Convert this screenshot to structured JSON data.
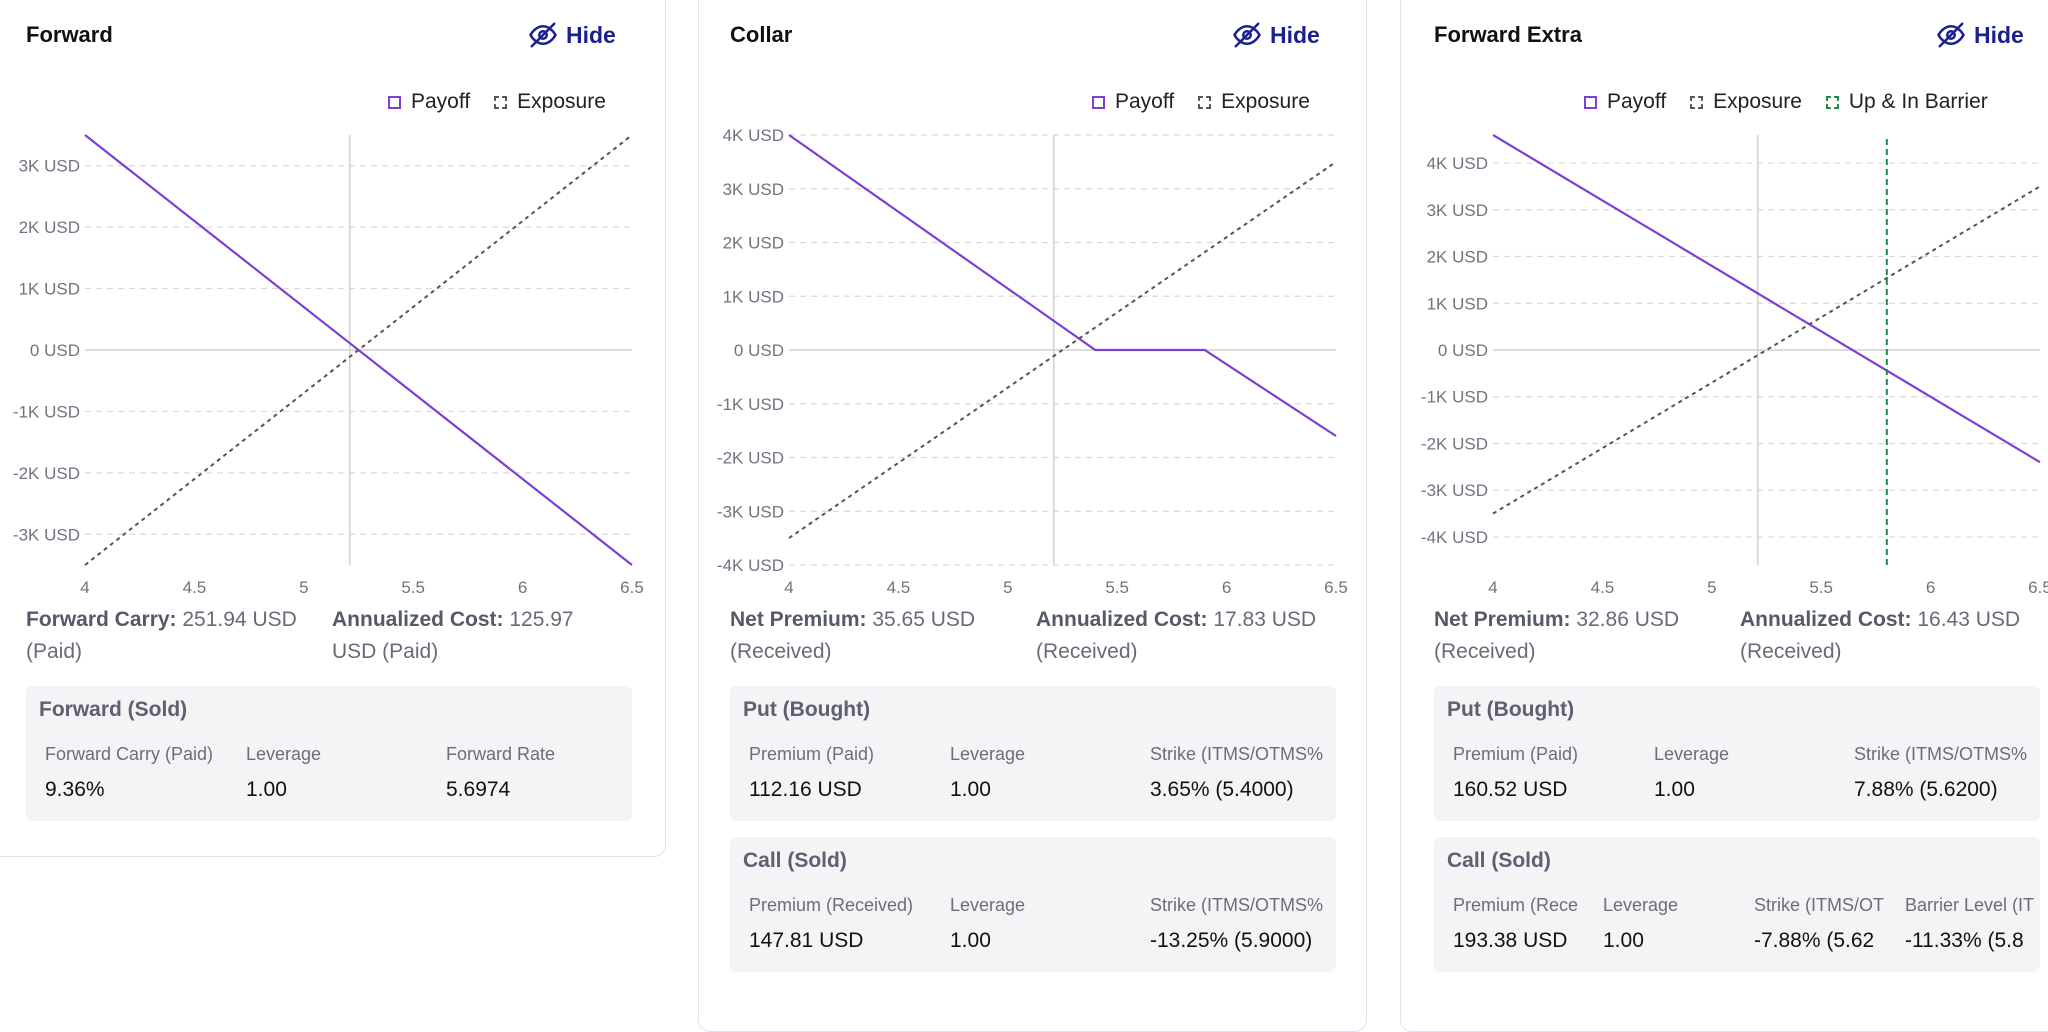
{
  "panels": [
    {
      "title": "Forward",
      "hide_label": "Hide",
      "legend": [
        {
          "label": "Payoff",
          "style": "solid",
          "color": "#7b3fd4"
        },
        {
          "label": "Exposure",
          "style": "dashed",
          "color": "#555555"
        }
      ],
      "stats": [
        {
          "label": "Forward Carry:",
          "value": " 251.94 USD (Paid)"
        },
        {
          "label": "Annualized Cost:",
          "value": " 125.97 USD (Paid)"
        }
      ],
      "boxes": [
        {
          "title": "Forward (Sold)",
          "columns": [
            {
              "label": "Forward Carry (Paid)",
              "value": "9.36%"
            },
            {
              "label": "Leverage",
              "value": "1.00"
            },
            {
              "label": "Forward Rate",
              "value": "5.6974"
            }
          ]
        }
      ]
    },
    {
      "title": "Collar",
      "hide_label": "Hide",
      "legend": [
        {
          "label": "Payoff",
          "style": "solid",
          "color": "#7b3fd4"
        },
        {
          "label": "Exposure",
          "style": "dashed",
          "color": "#555555"
        }
      ],
      "stats": [
        {
          "label": "Net Premium:",
          "value": " 35.65 USD (Received)"
        },
        {
          "label": "Annualized Cost:",
          "value": " 17.83 USD (Received)"
        }
      ],
      "boxes": [
        {
          "title": "Put (Bought)",
          "columns": [
            {
              "label": "Premium (Paid)",
              "value": "112.16 USD"
            },
            {
              "label": "Leverage",
              "value": "1.00"
            },
            {
              "label": "Strike (ITMS/OTMS%",
              "value": "3.65% (5.4000)"
            }
          ]
        },
        {
          "title": "Call (Sold)",
          "columns": [
            {
              "label": "Premium (Received)",
              "value": "147.81 USD"
            },
            {
              "label": "Leverage",
              "value": "1.00"
            },
            {
              "label": "Strike (ITMS/OTMS%",
              "value": "-13.25% (5.9000)"
            }
          ]
        }
      ]
    },
    {
      "title": "Forward Extra",
      "hide_label": "Hide",
      "legend": [
        {
          "label": "Payoff",
          "style": "solid",
          "color": "#7b3fd4"
        },
        {
          "label": "Exposure",
          "style": "dashed",
          "color": "#555555"
        },
        {
          "label": "Up & In Barrier",
          "style": "dashed",
          "color": "#1a8a4a"
        }
      ],
      "stats": [
        {
          "label": "Net Premium:",
          "value": " 32.86 USD (Received)"
        },
        {
          "label": "Annualized Cost:",
          "value": " 16.43 USD (Received)"
        }
      ],
      "boxes": [
        {
          "title": "Put (Bought)",
          "columns": [
            {
              "label": "Premium (Paid)",
              "value": "160.52 USD"
            },
            {
              "label": "Leverage",
              "value": "1.00"
            },
            {
              "label": "Strike (ITMS/OTMS%",
              "value": "7.88% (5.6200)"
            }
          ]
        },
        {
          "title": "Call (Sold)",
          "columns": [
            {
              "label": "Premium (Rece",
              "value": "193.38 USD"
            },
            {
              "label": "Leverage",
              "value": "1.00"
            },
            {
              "label": "Strike (ITMS/OT",
              "value": "-7.88% (5.62"
            },
            {
              "label": "Barrier Level (IT",
              "value": "-11.33% (5.8"
            }
          ]
        }
      ]
    }
  ],
  "chart_data": [
    {
      "type": "line",
      "x_ticks": [
        "4",
        "4.5",
        "5",
        "5.5",
        "6",
        "6.5"
      ],
      "y_ticks": [
        "3K USD",
        "2K USD",
        "1K USD",
        "0 USD",
        "-1K USD",
        "-2K USD",
        "-3K USD"
      ],
      "xlim": [
        4,
        6.5
      ],
      "ylim": [
        -3.5,
        3.5
      ],
      "ref_x": 5.21,
      "series": [
        {
          "name": "Payoff",
          "color": "#7b3fd4",
          "dash": false,
          "x": [
            4,
            6.5
          ],
          "y": [
            3.5,
            -3.5
          ]
        },
        {
          "name": "Exposure",
          "color": "#555555",
          "dash": true,
          "x": [
            4,
            6.5
          ],
          "y": [
            -3.5,
            3.5
          ]
        }
      ]
    },
    {
      "type": "line",
      "x_ticks": [
        "4",
        "4.5",
        "5",
        "5.5",
        "6",
        "6.5"
      ],
      "y_ticks": [
        "4K USD",
        "3K USD",
        "2K USD",
        "1K USD",
        "0 USD",
        "-1K USD",
        "-2K USD",
        "-3K USD",
        "-4K USD"
      ],
      "xlim": [
        4,
        6.5
      ],
      "ylim": [
        -4,
        4
      ],
      "ref_x": 5.21,
      "series": [
        {
          "name": "Payoff",
          "color": "#7b3fd4",
          "dash": false,
          "x": [
            4,
            5.4,
            5.9,
            6.5
          ],
          "y": [
            4,
            0,
            0,
            -1.6
          ]
        },
        {
          "name": "Exposure",
          "color": "#555555",
          "dash": true,
          "x": [
            4,
            6.5
          ],
          "y": [
            -3.5,
            3.5
          ]
        }
      ]
    },
    {
      "type": "line",
      "x_ticks": [
        "4",
        "4.5",
        "5",
        "5.5",
        "6",
        "6.5"
      ],
      "y_ticks": [
        "4K USD",
        "3K USD",
        "2K USD",
        "1K USD",
        "0 USD",
        "-1K USD",
        "-2K USD",
        "-3K USD",
        "-4K USD"
      ],
      "xlim": [
        4,
        6.5
      ],
      "ylim": [
        -4.6,
        4.6
      ],
      "ref_x": 5.21,
      "barrier_x": 5.8,
      "series": [
        {
          "name": "Payoff",
          "color": "#7b3fd4",
          "dash": false,
          "x": [
            4,
            6.5
          ],
          "y": [
            4.6,
            -2.4
          ]
        },
        {
          "name": "Exposure",
          "color": "#555555",
          "dash": true,
          "x": [
            4,
            6.5
          ],
          "y": [
            -3.5,
            3.5
          ]
        },
        {
          "name": "Up & In Barrier",
          "color": "#1a8a4a",
          "dash": true,
          "x": [
            5.8,
            5.8
          ],
          "y": [
            -4.6,
            4.6
          ]
        }
      ]
    }
  ]
}
